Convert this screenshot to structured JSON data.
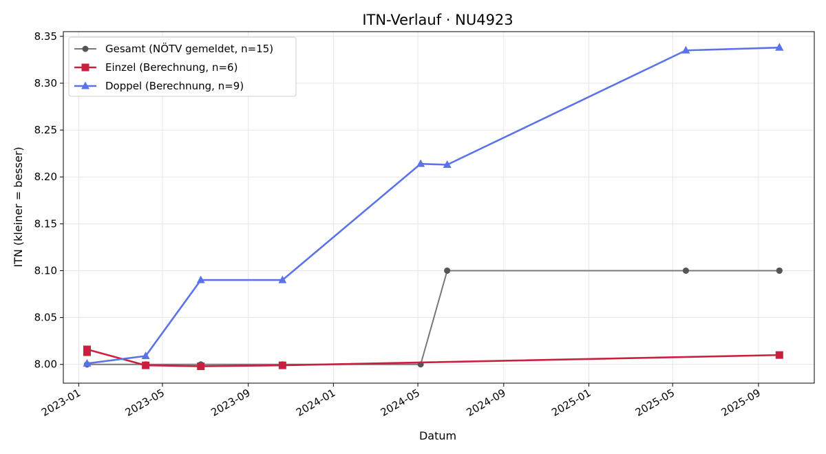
{
  "chart_data": {
    "type": "line",
    "title": "ITN-Verlauf · NU4923",
    "xlabel": "Datum",
    "ylabel": "ITN  (kleiner = besser)",
    "x_type": "date",
    "xlim": [
      "2022-12-10",
      "2025-11-20"
    ],
    "ylim": [
      7.98,
      8.355
    ],
    "x_ticks": [
      "2023-01-01",
      "2023-05-01",
      "2023-09-01",
      "2024-01-01",
      "2024-05-01",
      "2024-09-01",
      "2025-01-01",
      "2025-05-01",
      "2025-09-01"
    ],
    "x_tick_labels": [
      "2023-01",
      "2023-05",
      "2023-09",
      "2024-01",
      "2024-05",
      "2024-09",
      "2025-01",
      "2025-05",
      "2025-09"
    ],
    "y_ticks": [
      8.0,
      8.05,
      8.1,
      8.15,
      8.2,
      8.25,
      8.3,
      8.35
    ],
    "y_tick_labels": [
      "8.00",
      "8.05",
      "8.10",
      "8.15",
      "8.20",
      "8.25",
      "8.30",
      "8.35"
    ],
    "grid": true,
    "legend_position": "top-left",
    "series": [
      {
        "name": "Gesamt (NÖTV gemeldet, n=15)",
        "color": "#777777",
        "marker": "circle",
        "points": [
          [
            "2023-01-13",
            8.0
          ],
          [
            "2023-01-13",
            8.0
          ],
          [
            "2023-04-07",
            8.0
          ],
          [
            "2023-06-25",
            8.0
          ],
          [
            "2023-10-20",
            8.0
          ],
          [
            "2023-10-20",
            8.0
          ],
          [
            "2024-05-05",
            8.0
          ],
          [
            "2024-06-12",
            8.1
          ],
          [
            "2024-06-12",
            8.1
          ],
          [
            "2025-05-20",
            8.1
          ],
          [
            "2025-05-20",
            8.1
          ],
          [
            "2025-10-01",
            8.1
          ],
          [
            "2025-10-01",
            8.1
          ],
          [
            "2025-10-01",
            8.1
          ],
          [
            "2025-10-01",
            8.1
          ]
        ]
      },
      {
        "name": "Einzel (Berechnung, n=6)",
        "color": "#c8203e",
        "marker": "square",
        "points": [
          [
            "2023-01-13",
            8.013
          ],
          [
            "2023-01-13",
            8.016
          ],
          [
            "2023-04-07",
            7.999
          ],
          [
            "2023-06-25",
            7.998
          ],
          [
            "2023-10-20",
            7.999
          ],
          [
            "2025-10-01",
            8.01
          ]
        ]
      },
      {
        "name": "Doppel (Berechnung, n=9)",
        "color": "#5b73e8",
        "marker": "triangle",
        "points": [
          [
            "2023-01-13",
            8.001
          ],
          [
            "2023-04-07",
            8.009
          ],
          [
            "2023-06-25",
            8.09
          ],
          [
            "2023-10-20",
            8.09
          ],
          [
            "2024-05-05",
            8.214
          ],
          [
            "2024-06-12",
            8.213
          ],
          [
            "2025-05-20",
            8.335
          ],
          [
            "2025-10-01",
            8.338
          ],
          [
            "2025-10-01",
            8.338
          ]
        ]
      }
    ]
  }
}
